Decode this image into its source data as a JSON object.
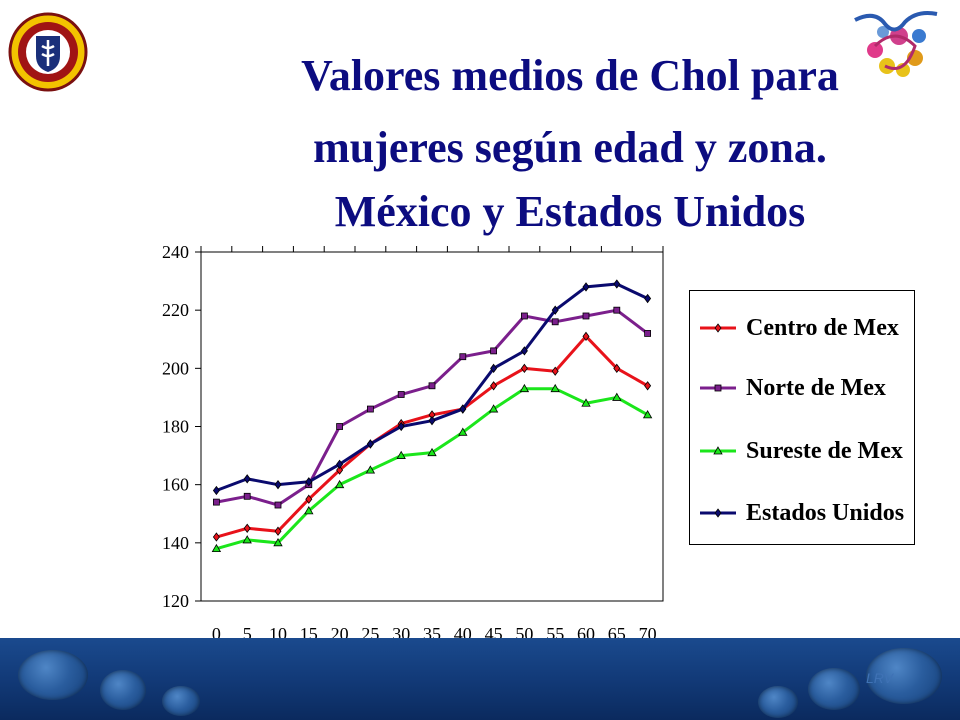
{
  "title": {
    "line1": "Valores medios de Chol para",
    "line2": "mujeres según edad y zona.",
    "line3": "México y Estados Unidos"
  },
  "signature": "LRV",
  "colors": {
    "title": "#0c0c80",
    "centro": "#e8121a",
    "norte": "#7b1f8c",
    "sureste": "#1be61b",
    "eeuu": "#0a0a6e",
    "footer": "#123a78"
  },
  "chart_data": {
    "type": "line",
    "x": [
      0,
      5,
      10,
      15,
      20,
      25,
      30,
      35,
      40,
      45,
      50,
      55,
      60,
      65,
      70
    ],
    "ylim": [
      120,
      240
    ],
    "yticks": [
      120,
      140,
      160,
      180,
      200,
      220,
      240
    ],
    "legend_position": "right",
    "series": [
      {
        "name": "Centro de Mex",
        "color": "#e8121a",
        "marker": "diamond",
        "values": [
          142,
          145,
          144,
          155,
          165,
          174,
          181,
          184,
          186,
          194,
          200,
          199,
          211,
          200,
          194
        ]
      },
      {
        "name": "Norte de Mex",
        "color": "#7b1f8c",
        "marker": "square",
        "values": [
          154,
          156,
          153,
          160,
          180,
          186,
          191,
          194,
          204,
          206,
          218,
          216,
          218,
          220,
          212
        ]
      },
      {
        "name": "Sureste de Mex",
        "color": "#1be61b",
        "marker": "triangle",
        "values": [
          138,
          141,
          140,
          151,
          160,
          165,
          170,
          171,
          178,
          186,
          193,
          193,
          188,
          190,
          184
        ]
      },
      {
        "name": "Estados Unidos",
        "color": "#0a0a6e",
        "marker": "diamond",
        "values": [
          158,
          162,
          160,
          161,
          167,
          174,
          180,
          182,
          186,
          200,
          206,
          220,
          228,
          229,
          224
        ]
      }
    ]
  }
}
